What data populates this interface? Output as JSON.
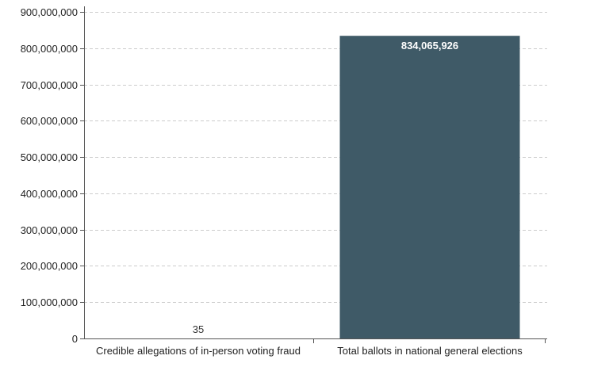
{
  "chart_data": {
    "type": "bar",
    "categories": [
      "Credible allegations of in-person voting fraud",
      "Total ballots in national general elections"
    ],
    "values": [
      35,
      834065926
    ],
    "value_labels": [
      "35",
      "834,065,926"
    ],
    "ylim": [
      0,
      900000000
    ],
    "yticks": [
      0,
      100000000,
      200000000,
      300000000,
      400000000,
      500000000,
      600000000,
      700000000,
      800000000,
      900000000
    ],
    "ytick_labels": [
      "0",
      "100,000,000",
      "200,000,000",
      "300,000,000",
      "400,000,000",
      "500,000,000",
      "600,000,000",
      "700,000,000",
      "800,000,000",
      "900,000,000"
    ],
    "grid": true,
    "colors": {
      "bar": "#3f5a67",
      "grid": "#cccccc",
      "axis": "#555555",
      "label_inside": "#ffffff",
      "label_outside": "#333333"
    }
  }
}
